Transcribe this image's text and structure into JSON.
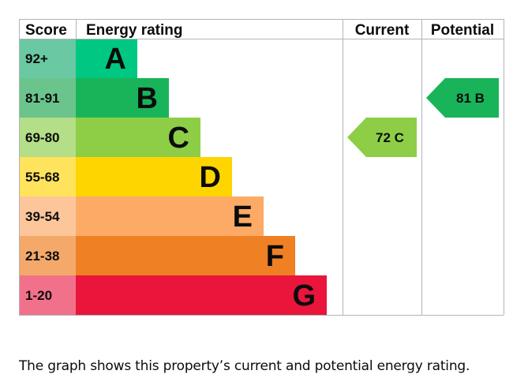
{
  "chart_data": {
    "type": "bar",
    "headers": {
      "score": "Score",
      "rating": "Energy rating",
      "current": "Current",
      "potential": "Potential"
    },
    "bands": [
      {
        "score": "92+",
        "letter": "A",
        "color": "#00c781",
        "score_bg": "#6ac8a3"
      },
      {
        "score": "81-91",
        "letter": "B",
        "color": "#19b459",
        "score_bg": "#6bc48c"
      },
      {
        "score": "69-80",
        "letter": "C",
        "color": "#8dce46",
        "score_bg": "#b4de87"
      },
      {
        "score": "55-68",
        "letter": "D",
        "color": "#ffd500",
        "score_bg": "#ffe35c"
      },
      {
        "score": "39-54",
        "letter": "E",
        "color": "#fcaa65",
        "score_bg": "#fdc69a"
      },
      {
        "score": "21-38",
        "letter": "F",
        "color": "#ef8023",
        "score_bg": "#f4a96a"
      },
      {
        "score": "1-20",
        "letter": "G",
        "color": "#e9153b",
        "score_bg": "#f1718a"
      }
    ],
    "current": {
      "value": 72,
      "letter": "C",
      "color": "#8dce46"
    },
    "potential": {
      "value": 81,
      "letter": "B",
      "color": "#19b459"
    }
  },
  "caption": "The graph shows this property’s current and potential energy rating."
}
